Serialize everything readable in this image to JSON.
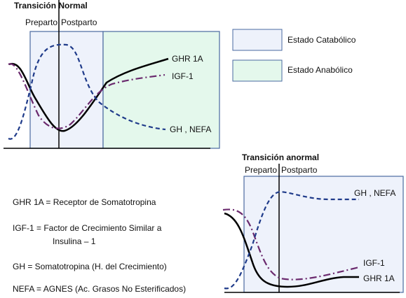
{
  "normal_panel": {
    "title": "Transición Normal",
    "preparto": "Preparto",
    "postparto": "Postparto",
    "labels": {
      "ghr": "GHR 1A",
      "igf": "IGF-1",
      "gh_nefa": "GH , NEFA"
    }
  },
  "legend": {
    "catabolic": "Estado Catabólico",
    "anabolic": "Estado Anabólico"
  },
  "abnormal_panel": {
    "title": "Transición anormal",
    "preparto": "Preparto",
    "postparto": "Postparto",
    "labels": {
      "gh_nefa": "GH , NEFA",
      "igf": "IGF-1",
      "ghr": "GHR 1A"
    }
  },
  "definitions": {
    "lines": [
      "GHR 1A =  Receptor de Somatotropina",
      "IGF-1  =  Factor de Crecimiento Similar a",
      "Insulina – 1",
      "GH =  Somatotropina (H. del Crecimiento)",
      "NEFA = AGNES  (Ac. Grasos No Esterificados)"
    ]
  }
}
